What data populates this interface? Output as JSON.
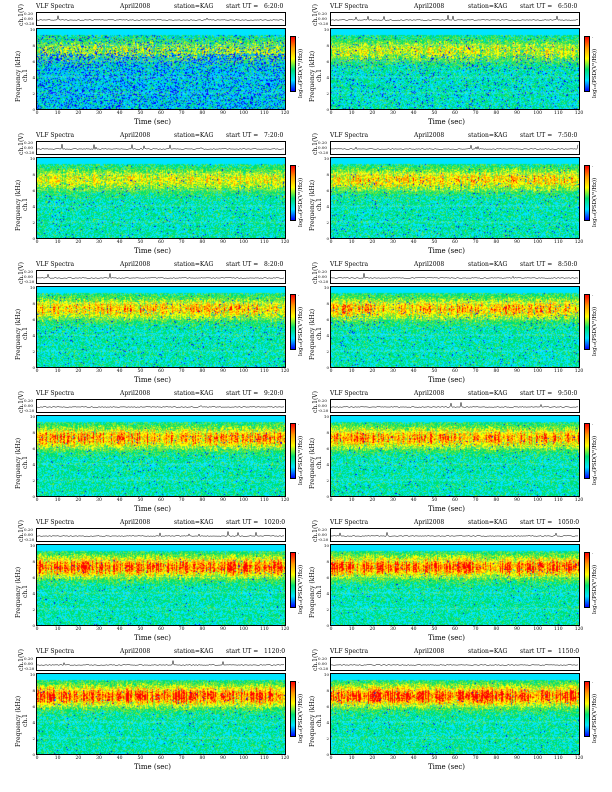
{
  "header": {
    "title": "VLF Spectra",
    "date": "April2008",
    "station": "station=KAG",
    "start_prefix": "start UT ="
  },
  "axes": {
    "ts_ylabel": "ch.1(V)",
    "ts_ticks": [
      "0.20",
      "0.00",
      "-0.20"
    ],
    "ylabel_top": "ch.1",
    "ylabel": "Frequency (kHz)",
    "yticks": [
      "10",
      "8",
      "6",
      "4",
      "2",
      "0"
    ],
    "xlabel": "Time (sec)",
    "xticks": [
      "0",
      "10",
      "20",
      "30",
      "40",
      "50",
      "60",
      "70",
      "80",
      "90",
      "100",
      "110",
      "120"
    ],
    "cbar_label": "log₁₀(PSD(V²/Hz))",
    "cbar_ticks": [
      "-",
      "-"
    ]
  },
  "colors": {
    "blue": "#0000ff",
    "cyan": "#00e5ff",
    "green": "#00e070",
    "yellow": "#ffff00",
    "orange": "#ff9900",
    "red": "#ff0000"
  },
  "chart_data": {
    "type": "heatmap",
    "x_range": [
      0,
      120
    ],
    "y_range": [
      0,
      10
    ],
    "x_unit": "sec",
    "y_unit": "kHz",
    "panels": [
      {
        "start": "6:20:0",
        "intensity": 0.45,
        "blue_density": 0.55
      },
      {
        "start": "6:50:0",
        "intensity": 0.5,
        "blue_density": 0.15
      },
      {
        "start": "7:20:0",
        "intensity": 0.55,
        "blue_density": 0.05
      },
      {
        "start": "7:50:0",
        "intensity": 0.65,
        "blue_density": 0.05
      },
      {
        "start": "8:20:0",
        "intensity": 0.7,
        "blue_density": 0.05
      },
      {
        "start": "8:50:0",
        "intensity": 0.72,
        "blue_density": 0.05
      },
      {
        "start": "9:20:0",
        "intensity": 0.8,
        "blue_density": 0.03
      },
      {
        "start": "9:50:0",
        "intensity": 0.8,
        "blue_density": 0.03
      },
      {
        "start": "1020:0",
        "intensity": 0.9,
        "blue_density": 0.02
      },
      {
        "start": "1050:0",
        "intensity": 0.9,
        "blue_density": 0.02
      },
      {
        "start": "1120:0",
        "intensity": 0.95,
        "blue_density": 0.02
      },
      {
        "start": "1150:0",
        "intensity": 0.95,
        "blue_density": 0.02
      }
    ]
  }
}
